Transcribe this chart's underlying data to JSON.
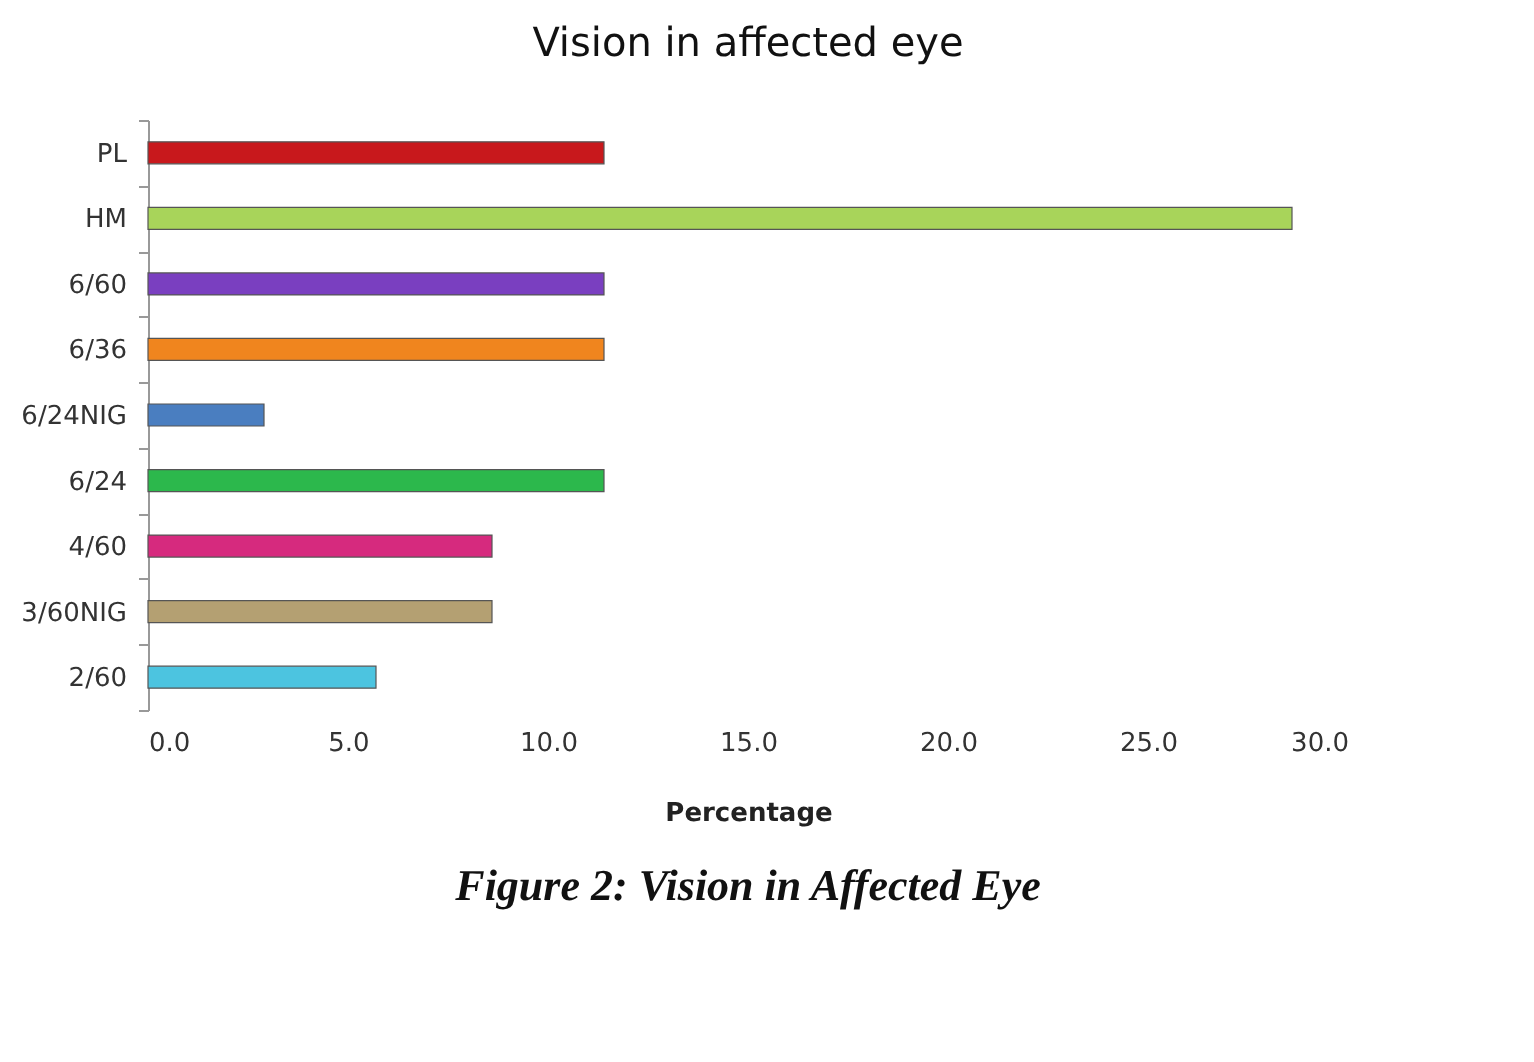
{
  "chart_data": {
    "type": "bar",
    "orientation": "horizontal",
    "title": "Vision in affected eye",
    "xlabel": "Percentage",
    "categories": [
      "PL",
      "HM",
      "6/60",
      "6/36",
      "6/24NIG",
      "6/24",
      "4/60",
      "3/60NIG",
      "2/60"
    ],
    "values": [
      11.4,
      28.6,
      11.4,
      11.4,
      2.9,
      11.4,
      8.6,
      8.6,
      5.7
    ],
    "colors": [
      "#c8181c",
      "#a8d45a",
      "#7a3fc0",
      "#f0851e",
      "#4a7ec0",
      "#2cb84c",
      "#d62a7e",
      "#b4a072",
      "#4cc4e0"
    ],
    "xlim": [
      0,
      30
    ],
    "xticks": [
      {
        "value": 0,
        "label": "0.0"
      },
      {
        "value": 5,
        "label": "5.0"
      },
      {
        "value": 10,
        "label": "10.0"
      },
      {
        "value": 15,
        "label": "15.0"
      },
      {
        "value": 20,
        "label": "20.0"
      },
      {
        "value": 25,
        "label": "25.0"
      },
      {
        "value": 30,
        "label": "30.0"
      }
    ],
    "grid": false,
    "annotations": [
      "Figure 2: Vision in Affected Eye"
    ]
  }
}
